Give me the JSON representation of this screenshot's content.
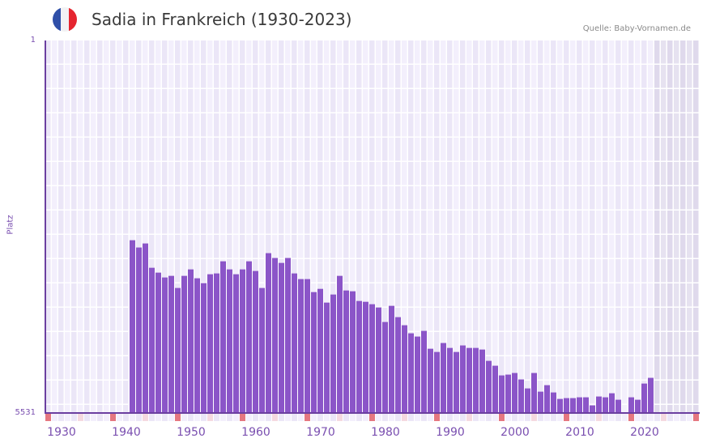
{
  "header": {
    "title": "Sadia in Frankreich (1930-2023)",
    "source": "Quelle: Baby-Vornamen.de",
    "flag_colors": [
      "#2f4fa8",
      "#f2f2f4",
      "#e5252f"
    ]
  },
  "axes": {
    "y_top_label": "1",
    "y_bottom_label": "5531",
    "y_title": "Platz",
    "x_labels": [
      "1930",
      "1940",
      "1950",
      "1960",
      "1970",
      "1980",
      "1990",
      "2000",
      "2010",
      "2020"
    ]
  },
  "colors": {
    "bar": "#8b55c8",
    "axis": "#6b3fa0",
    "grid_cell_a": "#f3effc",
    "grid_cell_b": "#ebe6f7",
    "future_cell_a": "#e6e2f0",
    "future_cell_b": "#dfd9ec",
    "marker_strong": "#e57780",
    "marker_light": "#f5d9e0"
  },
  "chart_data": {
    "type": "bar",
    "title": "Sadia in Frankreich (1930-2023)",
    "xlabel": "",
    "ylabel": "Platz",
    "y_inverted": true,
    "ylim": [
      5531,
      1
    ],
    "x_range": [
      1929,
      2029
    ],
    "shaded_future_from": 2023,
    "grid": true,
    "x": [
      1942,
      1943,
      1944,
      1945,
      1946,
      1947,
      1948,
      1949,
      1950,
      1951,
      1952,
      1953,
      1954,
      1955,
      1956,
      1957,
      1958,
      1959,
      1960,
      1961,
      1962,
      1963,
      1964,
      1965,
      1966,
      1967,
      1968,
      1969,
      1970,
      1971,
      1972,
      1973,
      1974,
      1975,
      1976,
      1977,
      1978,
      1979,
      1980,
      1981,
      1982,
      1983,
      1984,
      1985,
      1986,
      1987,
      1988,
      1989,
      1990,
      1991,
      1992,
      1993,
      1994,
      1995,
      1996,
      1997,
      1998,
      1999,
      2000,
      2001,
      2002,
      2003,
      2004,
      2005,
      2006,
      2007,
      2008,
      2009,
      2010,
      2011,
      2012,
      2013,
      2014,
      2015,
      2016,
      2017,
      2019,
      2020,
      2021,
      2022
    ],
    "values": [
      2966,
      3074,
      3014,
      3375,
      3447,
      3519,
      3495,
      3675,
      3495,
      3399,
      3531,
      3603,
      3471,
      3459,
      3279,
      3399,
      3471,
      3399,
      3279,
      3423,
      3675,
      3158,
      3230,
      3303,
      3230,
      3459,
      3543,
      3543,
      3736,
      3688,
      3892,
      3772,
      3495,
      3712,
      3724,
      3868,
      3880,
      3916,
      3964,
      4180,
      3940,
      4108,
      4228,
      4348,
      4396,
      4312,
      4577,
      4625,
      4492,
      4565,
      4625,
      4528,
      4565,
      4565,
      4589,
      4757,
      4829,
      4973,
      4961,
      4937,
      5033,
      5166,
      4937,
      5214,
      5118,
      5226,
      5322,
      5310,
      5310,
      5298,
      5298,
      5418,
      5286,
      5298,
      5238,
      5334,
      5298,
      5334,
      5094,
      5009
    ]
  }
}
